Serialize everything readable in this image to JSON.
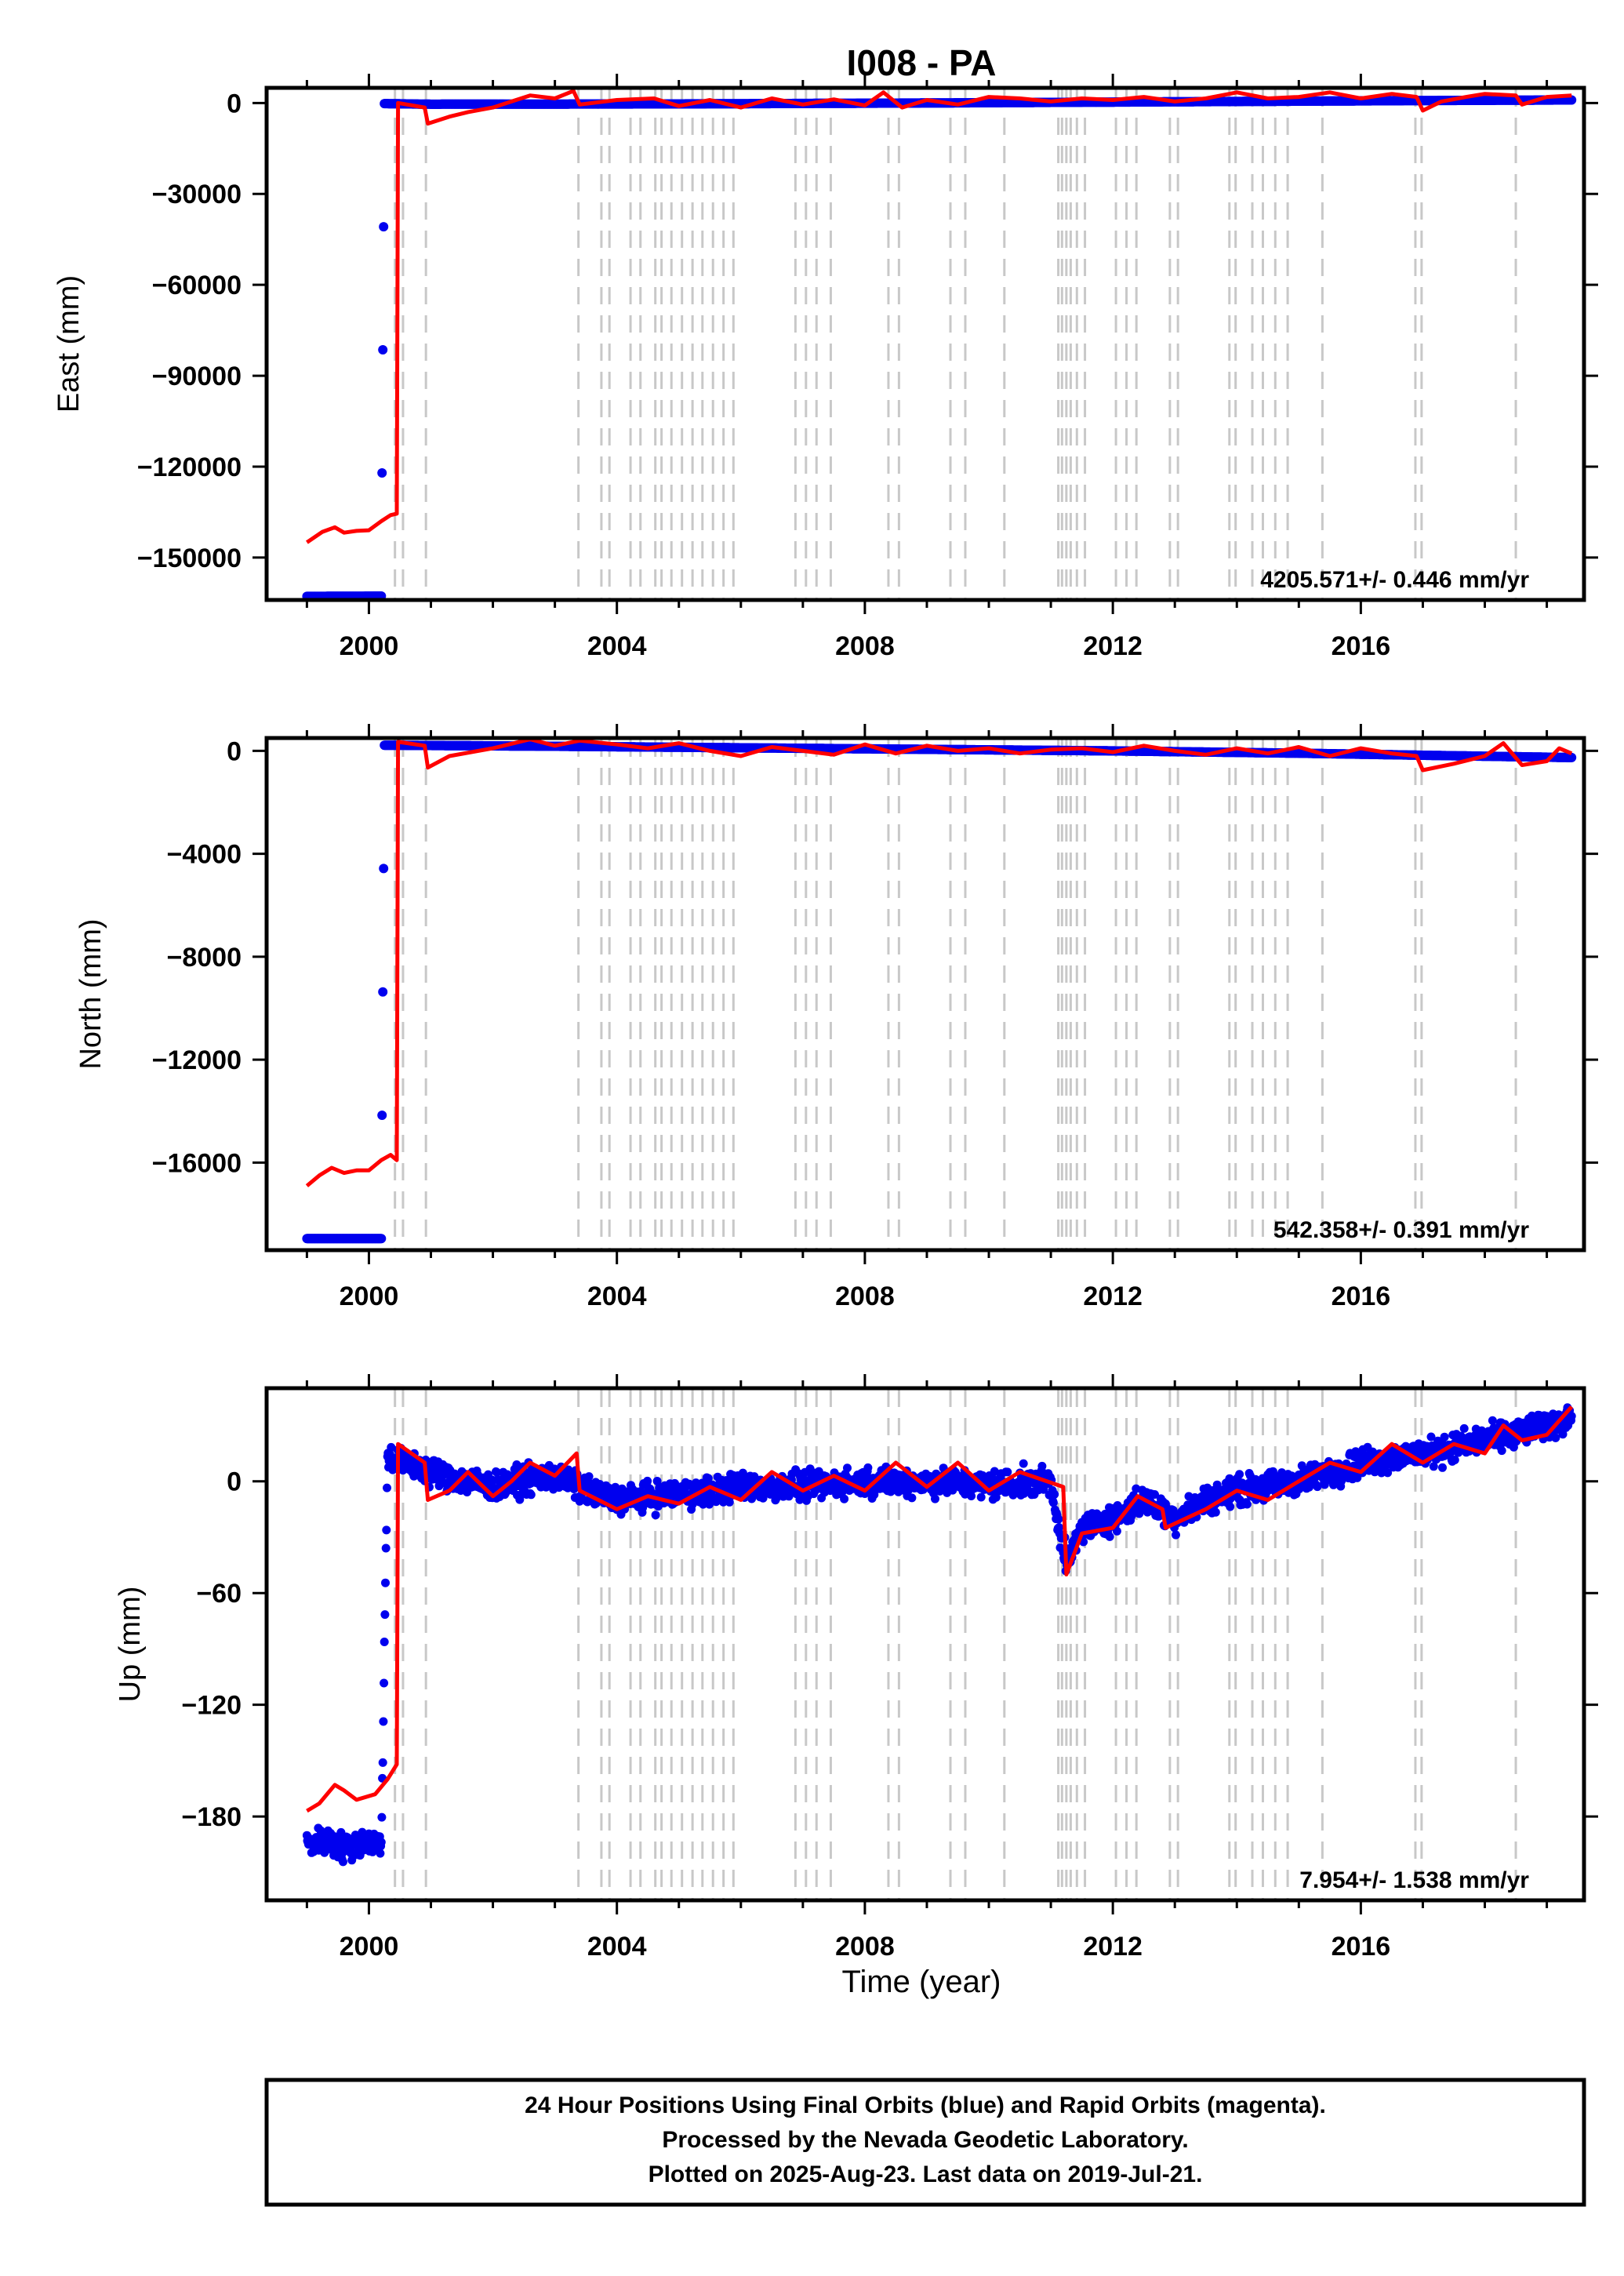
{
  "title": "I008 - PA",
  "x_axis_label": "Time (year)",
  "footer": {
    "line1": "24 Hour Positions Using Final Orbits (blue) and Rapid Orbits (magenta).",
    "line2": "Processed by the Nevada Geodetic Laboratory.",
    "line3": "Plotted on 2025-Aug-23. Last data on 2019-Jul-21."
  },
  "colors": {
    "final_orbits": "#0000ee",
    "model": "#ff0000",
    "event_lines": "#c8c8c8",
    "axes": "#000000"
  },
  "chart_data": [
    {
      "type": "scatter",
      "component": "east",
      "ylabel": "East (mm)",
      "rate_text": "4205.571+/- 0.446 mm/yr",
      "xlim": [
        1998.35,
        2019.6
      ],
      "ylim": [
        -164000,
        5000
      ],
      "xticks": [
        2000,
        2004,
        2008,
        2012,
        2016
      ],
      "yticks": [
        0,
        -30000,
        -60000,
        -90000,
        -120000,
        -150000
      ],
      "ytick_labels": [
        "0",
        "−30000",
        "−60000",
        "−90000",
        "−120000",
        "−150000"
      ],
      "dots": [
        [
          1999.0,
          -162800
        ],
        [
          1999.3,
          -162800
        ],
        [
          1999.6,
          -162750
        ],
        [
          1999.9,
          -162750
        ],
        [
          2000.2,
          -162700
        ],
        [
          2000.25,
          -200
        ],
        [
          2001,
          -400
        ],
        [
          2003,
          -350
        ],
        [
          2005,
          -300
        ],
        [
          2007,
          -150
        ],
        [
          2009,
          0
        ],
        [
          2011,
          200
        ],
        [
          2013,
          400
        ],
        [
          2015,
          600
        ],
        [
          2017,
          800
        ],
        [
          2019.4,
          1000
        ]
      ],
      "model": [
        [
          1999.0,
          -145000
        ],
        [
          1999.25,
          -141500
        ],
        [
          1999.45,
          -140000
        ],
        [
          1999.6,
          -141800
        ],
        [
          1999.8,
          -141200
        ],
        [
          2000.0,
          -141000
        ],
        [
          2000.2,
          -138000
        ],
        [
          2000.35,
          -136000
        ],
        [
          2000.45,
          -135500
        ],
        [
          2000.47,
          0
        ],
        [
          2000.9,
          -1500
        ],
        [
          2000.95,
          -6800
        ],
        [
          2001.3,
          -4500
        ],
        [
          2001.6,
          -3000
        ],
        [
          2002.0,
          -1500
        ],
        [
          2002.3,
          500
        ],
        [
          2002.6,
          2500
        ],
        [
          2003.0,
          1500
        ],
        [
          2003.3,
          4000
        ],
        [
          2003.4,
          -500
        ],
        [
          2004,
          1000
        ],
        [
          2004.6,
          1500
        ],
        [
          2005,
          -1000
        ],
        [
          2005.5,
          1000
        ],
        [
          2006,
          -1500
        ],
        [
          2006.5,
          1500
        ],
        [
          2007,
          -500
        ],
        [
          2007.5,
          1200
        ],
        [
          2008,
          -800
        ],
        [
          2008.3,
          3500
        ],
        [
          2008.6,
          -1500
        ],
        [
          2009,
          1000
        ],
        [
          2009.5,
          -500
        ],
        [
          2010,
          2000
        ],
        [
          2010.5,
          1500
        ],
        [
          2011,
          500
        ],
        [
          2011.5,
          1500
        ],
        [
          2012,
          1000
        ],
        [
          2012.5,
          2000
        ],
        [
          2013,
          500
        ],
        [
          2013.5,
          1500
        ],
        [
          2014,
          3500
        ],
        [
          2014.5,
          1500
        ],
        [
          2015,
          2000
        ],
        [
          2015.5,
          3500
        ],
        [
          2016,
          1500
        ],
        [
          2016.5,
          3000
        ],
        [
          2016.9,
          2000
        ],
        [
          2017.0,
          -2500
        ],
        [
          2017.3,
          500
        ],
        [
          2017.7,
          2000
        ],
        [
          2018,
          3000
        ],
        [
          2018.5,
          2500
        ],
        [
          2018.6,
          -500
        ],
        [
          2019,
          2000
        ],
        [
          2019.4,
          2500
        ]
      ]
    },
    {
      "type": "scatter",
      "component": "north",
      "ylabel": "North (mm)",
      "rate_text": "542.358+/- 0.391 mm/yr",
      "xlim": [
        1998.35,
        2019.6
      ],
      "ylim": [
        -19400,
        500
      ],
      "xticks": [
        2000,
        2004,
        2008,
        2012,
        2016
      ],
      "yticks": [
        0,
        -4000,
        -8000,
        -12000,
        -16000
      ],
      "ytick_labels": [
        "0",
        "−4000",
        "−8000",
        "−12000",
        "−16000"
      ],
      "dots": [
        [
          1999.0,
          -18950
        ],
        [
          1999.4,
          -18950
        ],
        [
          1999.8,
          -18950
        ],
        [
          2000.2,
          -18950
        ],
        [
          2000.25,
          220
        ],
        [
          2003,
          180
        ],
        [
          2006,
          120
        ],
        [
          2009,
          60
        ],
        [
          2012,
          0
        ],
        [
          2015,
          -90
        ],
        [
          2017,
          -170
        ],
        [
          2019.4,
          -260
        ]
      ],
      "model": [
        [
          1999.0,
          -16900
        ],
        [
          1999.2,
          -16500
        ],
        [
          1999.4,
          -16200
        ],
        [
          1999.6,
          -16400
        ],
        [
          1999.8,
          -16300
        ],
        [
          2000.0,
          -16300
        ],
        [
          2000.2,
          -15900
        ],
        [
          2000.35,
          -15700
        ],
        [
          2000.45,
          -15900
        ],
        [
          2000.47,
          350
        ],
        [
          2000.9,
          200
        ],
        [
          2000.95,
          -650
        ],
        [
          2001.3,
          -200
        ],
        [
          2002,
          100
        ],
        [
          2002.6,
          450
        ],
        [
          2003,
          200
        ],
        [
          2003.4,
          400
        ],
        [
          2004,
          250
        ],
        [
          2004.5,
          100
        ],
        [
          2005,
          300
        ],
        [
          2005.5,
          0
        ],
        [
          2006,
          -200
        ],
        [
          2006.5,
          150
        ],
        [
          2007,
          0
        ],
        [
          2007.5,
          -150
        ],
        [
          2008,
          250
        ],
        [
          2008.5,
          -100
        ],
        [
          2009,
          200
        ],
        [
          2009.5,
          0
        ],
        [
          2010,
          100
        ],
        [
          2010.5,
          -100
        ],
        [
          2011,
          50
        ],
        [
          2011.5,
          100
        ],
        [
          2012,
          -50
        ],
        [
          2012.5,
          200
        ],
        [
          2013,
          0
        ],
        [
          2013.5,
          -150
        ],
        [
          2014,
          100
        ],
        [
          2014.5,
          -100
        ],
        [
          2015,
          150
        ],
        [
          2015.5,
          -200
        ],
        [
          2016,
          100
        ],
        [
          2016.5,
          -100
        ],
        [
          2016.9,
          -200
        ],
        [
          2017.0,
          -750
        ],
        [
          2017.5,
          -500
        ],
        [
          2018,
          -200
        ],
        [
          2018.3,
          300
        ],
        [
          2018.6,
          -550
        ],
        [
          2019,
          -400
        ],
        [
          2019.2,
          100
        ],
        [
          2019.4,
          -100
        ]
      ]
    },
    {
      "type": "scatter",
      "component": "up",
      "ylabel": "Up (mm)",
      "rate_text": "7.954+/- 1.538 mm/yr",
      "xlim": [
        1998.35,
        2019.6
      ],
      "ylim": [
        -225,
        50
      ],
      "xticks": [
        2000,
        2004,
        2008,
        2012,
        2016
      ],
      "yticks": [
        0,
        -60,
        -120,
        -180
      ],
      "ytick_labels": [
        "0",
        "−60",
        "−120",
        "−180"
      ],
      "dots": [
        [
          1999.0,
          -195
        ],
        [
          1999.3,
          -193
        ],
        [
          1999.6,
          -197
        ],
        [
          1999.9,
          -193
        ],
        [
          2000.2,
          -195
        ],
        [
          2000.3,
          13
        ],
        [
          2001,
          5
        ],
        [
          2002,
          -3
        ],
        [
          2003,
          3
        ],
        [
          2003.5,
          -5
        ],
        [
          2004,
          -10
        ],
        [
          2005,
          -7
        ],
        [
          2006,
          -3
        ],
        [
          2007,
          -3
        ],
        [
          2008,
          0
        ],
        [
          2009,
          0
        ],
        [
          2010,
          -2
        ],
        [
          2011,
          0
        ],
        [
          2011.25,
          -45
        ],
        [
          2011.5,
          -25
        ],
        [
          2012,
          -20
        ],
        [
          2012.5,
          -10
        ],
        [
          2013,
          -20
        ],
        [
          2013.5,
          -10
        ],
        [
          2014,
          -5
        ],
        [
          2015,
          0
        ],
        [
          2016,
          10
        ],
        [
          2017,
          15
        ],
        [
          2018,
          22
        ],
        [
          2019,
          30
        ],
        [
          2019.4,
          35
        ]
      ],
      "model": [
        [
          1999.0,
          -177
        ],
        [
          1999.2,
          -173
        ],
        [
          1999.45,
          -163
        ],
        [
          1999.6,
          -166
        ],
        [
          1999.8,
          -171
        ],
        [
          2000.1,
          -168
        ],
        [
          2000.3,
          -160
        ],
        [
          2000.45,
          -152
        ],
        [
          2000.47,
          20
        ],
        [
          2000.9,
          10
        ],
        [
          2000.95,
          -10
        ],
        [
          2001.3,
          -5
        ],
        [
          2001.6,
          5
        ],
        [
          2002,
          -8
        ],
        [
          2002.3,
          0
        ],
        [
          2002.6,
          10
        ],
        [
          2003,
          3
        ],
        [
          2003.35,
          15
        ],
        [
          2003.4,
          -5
        ],
        [
          2004,
          -15
        ],
        [
          2004.5,
          -8
        ],
        [
          2005,
          -12
        ],
        [
          2005.5,
          -3
        ],
        [
          2006,
          -10
        ],
        [
          2006.5,
          5
        ],
        [
          2007,
          -5
        ],
        [
          2007.5,
          3
        ],
        [
          2008,
          -5
        ],
        [
          2008.5,
          10
        ],
        [
          2009,
          -3
        ],
        [
          2009.5,
          10
        ],
        [
          2010,
          -5
        ],
        [
          2010.5,
          5
        ],
        [
          2011.2,
          -3
        ],
        [
          2011.25,
          -50
        ],
        [
          2011.5,
          -28
        ],
        [
          2012,
          -25
        ],
        [
          2012.4,
          -8
        ],
        [
          2012.8,
          -15
        ],
        [
          2012.85,
          -25
        ],
        [
          2013.5,
          -15
        ],
        [
          2014,
          -5
        ],
        [
          2014.5,
          -10
        ],
        [
          2015,
          0
        ],
        [
          2015.5,
          10
        ],
        [
          2016,
          5
        ],
        [
          2016.5,
          20
        ],
        [
          2017,
          10
        ],
        [
          2017.5,
          20
        ],
        [
          2018,
          15
        ],
        [
          2018.3,
          30
        ],
        [
          2018.6,
          22
        ],
        [
          2019,
          25
        ],
        [
          2019.4,
          40
        ]
      ]
    }
  ],
  "event_lines": [
    2000.42,
    2000.55,
    2000.92,
    2003.38,
    2003.75,
    2003.88,
    2004.22,
    2004.38,
    2004.62,
    2004.72,
    2004.88,
    2005.05,
    2005.22,
    2005.38,
    2005.55,
    2005.72,
    2005.88,
    2006.88,
    2007.05,
    2007.22,
    2007.45,
    2008.38,
    2008.55,
    2009.38,
    2009.62,
    2010.25,
    2011.12,
    2011.18,
    2011.25,
    2011.32,
    2011.42,
    2011.55,
    2012.05,
    2012.22,
    2012.38,
    2012.92,
    2013.05,
    2013.88,
    2013.98,
    2014.25,
    2014.42,
    2014.62,
    2014.82,
    2015.38,
    2016.88,
    2016.98,
    2018.5
  ]
}
